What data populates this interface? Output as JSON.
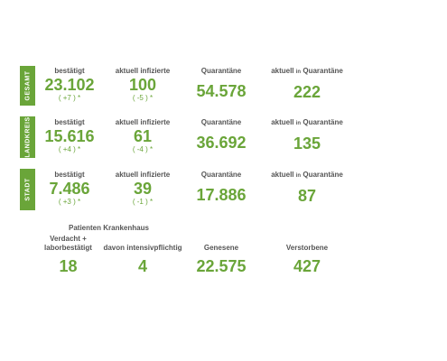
{
  "colors": {
    "accent": "#6aa539",
    "text": "#555555"
  },
  "sections": [
    {
      "side": "GESAMT",
      "confirmed": {
        "label": "bestätigt",
        "value": "23.102",
        "change": "( +7 ) *"
      },
      "infected": {
        "label": "aktuell infizierte",
        "value": "100",
        "change": "( -5 ) *"
      },
      "quarantine": {
        "label": "Quarantäne",
        "value": "54.578"
      },
      "current_quarantine": {
        "label_a": "aktuell",
        "label_in": "in",
        "label_b": "Quarantäne",
        "value": "222"
      }
    },
    {
      "side": "LANDKREIS",
      "confirmed": {
        "label": "bestätigt",
        "value": "15.616",
        "change": "( +4 ) *"
      },
      "infected": {
        "label": "aktuell infizierte",
        "value": "61",
        "change": "( -4 ) *"
      },
      "quarantine": {
        "label": "Quarantäne",
        "value": "36.692"
      },
      "current_quarantine": {
        "label_a": "aktuell",
        "label_in": "in",
        "label_b": "Quarantäne",
        "value": "135"
      }
    },
    {
      "side": "STADT",
      "confirmed": {
        "label": "bestätigt",
        "value": "7.486",
        "change": "( +3 ) *"
      },
      "infected": {
        "label": "aktuell infizierte",
        "value": "39",
        "change": "( -1 ) *"
      },
      "quarantine": {
        "label": "Quarantäne",
        "value": "17.886"
      },
      "current_quarantine": {
        "label_a": "aktuell",
        "label_in": "in",
        "label_b": "Quarantäne",
        "value": "87"
      }
    }
  ],
  "hospital": {
    "title": "Patienten Krankenhaus",
    "suspected": {
      "label_line1": "Verdacht +",
      "label_line2": "laborbestätigt",
      "value": "18"
    },
    "intensive": {
      "label": "davon intensivpflichtig",
      "value": "4"
    },
    "recovered": {
      "label": "Genesene",
      "value": "22.575"
    },
    "deceased": {
      "label": "Verstorbene",
      "value": "427"
    }
  }
}
